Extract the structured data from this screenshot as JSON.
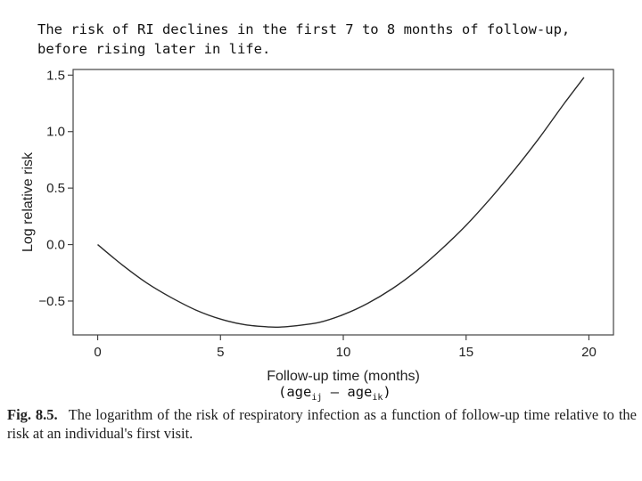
{
  "slide": {
    "title": "The risk of RI declines in the first 7 to 8 months of follow-up, before rising later in life."
  },
  "annotation": {
    "prefix": "(age",
    "sub1": "ij",
    "middle": " – age",
    "sub2": "ik",
    "suffix": ")"
  },
  "caption": {
    "label": "Fig. 8.5.",
    "text": "The logarithm of the risk of respiratory infection as a function of follow-up time relative to the risk at an individual's first visit."
  },
  "chart_data": {
    "type": "line",
    "title": "",
    "xlabel": "Follow-up time (months)",
    "ylabel": "Log relative risk",
    "xlim": [
      -1,
      21
    ],
    "ylim": [
      -0.8,
      1.55
    ],
    "xticks": [
      0,
      5,
      10,
      15,
      20
    ],
    "xtick_labels": [
      "0",
      "5",
      "10",
      "15",
      "20"
    ],
    "yticks": [
      -0.5,
      0.0,
      0.5,
      1.0,
      1.5
    ],
    "ytick_labels": [
      "−0.5",
      "0.0",
      "0.5",
      "1.0",
      "1.5"
    ],
    "grid": false,
    "series": [
      {
        "x": [
          0,
          1,
          2,
          3,
          4,
          5,
          6,
          7,
          7.5,
          8,
          9,
          10,
          11,
          12,
          13,
          14,
          15,
          16,
          17,
          18,
          19,
          19.8
        ],
        "y": [
          0.0,
          -0.18,
          -0.34,
          -0.47,
          -0.58,
          -0.66,
          -0.71,
          -0.73,
          -0.73,
          -0.72,
          -0.69,
          -0.62,
          -0.52,
          -0.39,
          -0.23,
          -0.04,
          0.17,
          0.41,
          0.67,
          0.95,
          1.25,
          1.48
        ]
      }
    ],
    "colors": {
      "line": "#2a2a2a",
      "frame": "#444444"
    }
  }
}
